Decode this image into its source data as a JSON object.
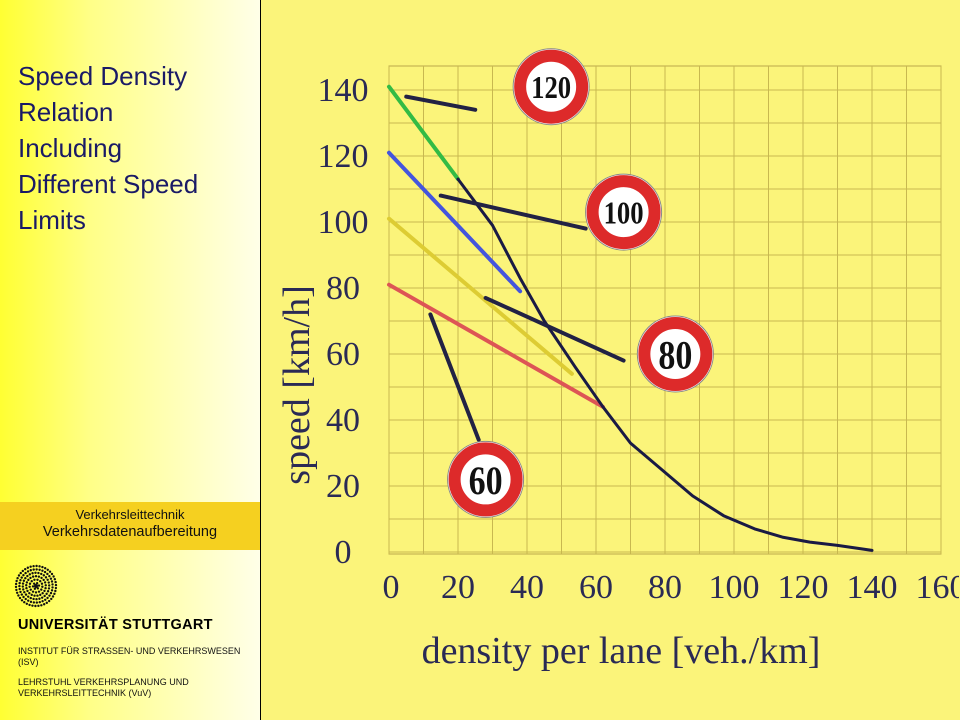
{
  "slide": {
    "title_lines": [
      "Speed Density",
      "Relation",
      "Including",
      "Different Speed",
      "Limits"
    ],
    "course_line1": "Verkehrsleittechnik",
    "course_line2": "Verkehrsdatenaufbereitung",
    "university": "UNIVERSITÄT STUTTGART",
    "institute_1": "INSTITUT FÜR STRASSEN- UND VERKEHRSWESEN (ISV)",
    "institute_2": "LEHRSTUHL VERKEHRSPLANUNG UND VERKEHRSLEITTECHNIK (VuV)"
  },
  "chart_data": {
    "type": "line",
    "xlabel": "density per lane [veh./km]",
    "ylabel": "speed [km/h]",
    "xlim": [
      0,
      160
    ],
    "ylim": [
      0,
      140
    ],
    "x_ticks": [
      "0",
      "20",
      "40",
      "60",
      "80",
      "100",
      "120",
      "140",
      "160"
    ],
    "y_ticks": [
      "0",
      "20",
      "40",
      "60",
      "80",
      "100",
      "120",
      "140"
    ],
    "grid": true,
    "series": [
      {
        "limit": 120,
        "color": "#33bb44",
        "points": [
          [
            0,
            141
          ],
          [
            20,
            113
          ]
        ]
      },
      {
        "limit": 100,
        "color": "#4455dd",
        "points": [
          [
            0,
            121
          ],
          [
            38,
            79
          ]
        ]
      },
      {
        "limit": 80,
        "color": "#ddcc33",
        "points": [
          [
            0,
            101
          ],
          [
            53,
            54
          ]
        ]
      },
      {
        "limit": 60,
        "color": "#dd5555",
        "points": [
          [
            0,
            81
          ],
          [
            62,
            44
          ]
        ]
      },
      {
        "color": "#1a1a44",
        "points": [
          [
            20,
            113
          ],
          [
            30,
            99
          ],
          [
            38,
            83
          ],
          [
            45,
            70
          ],
          [
            54,
            56
          ],
          [
            62,
            44
          ],
          [
            70,
            33
          ],
          [
            79,
            25
          ],
          [
            88,
            17
          ],
          [
            97,
            11
          ],
          [
            106,
            7
          ],
          [
            114,
            4.5
          ],
          [
            122,
            3
          ],
          [
            130,
            2
          ],
          [
            140,
            0.5
          ]
        ]
      }
    ],
    "annotations": [
      {
        "sign": "120",
        "sign_at": [
          47,
          141
        ],
        "line_from": [
          5,
          138
        ],
        "line_to": [
          25,
          134
        ]
      },
      {
        "sign": "100",
        "sign_at": [
          68,
          103
        ],
        "line_from": [
          15,
          108
        ],
        "line_to": [
          57,
          98
        ]
      },
      {
        "sign": "80",
        "sign_at": [
          83,
          60
        ],
        "line_from": [
          28,
          77
        ],
        "line_to": [
          68,
          58
        ]
      },
      {
        "sign": "60",
        "sign_at": [
          28,
          22
        ],
        "line_from": [
          12,
          72
        ],
        "line_to": [
          26,
          34
        ]
      }
    ]
  }
}
